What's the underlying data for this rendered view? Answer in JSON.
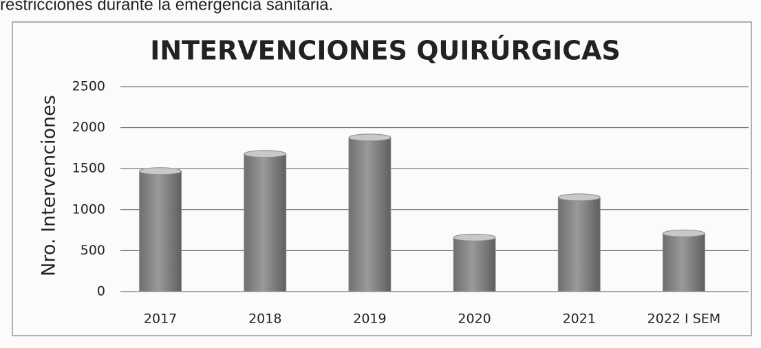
{
  "document_text": "restricciones durante la emergencia sanitaria.",
  "chart_data": {
    "type": "bar",
    "title": "INTERVENCIONES QUIRÚRGICAS",
    "y_label": "Nro. Intervenciones",
    "categories": [
      "2017",
      "2018",
      "2019",
      "2020",
      "2021",
      "2022 I SEM"
    ],
    "values": [
      1470,
      1680,
      1880,
      660,
      1150,
      710
    ],
    "color": "#8a8a8a",
    "ylim": [
      0,
      2500
    ],
    "yticks": [
      0,
      500,
      1000,
      1500,
      2000,
      2500
    ],
    "grid": true
  }
}
